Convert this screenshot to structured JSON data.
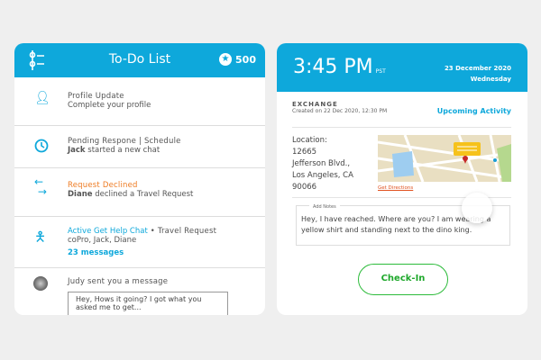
{
  "todo": {
    "title": "To-Do List",
    "points": "500",
    "items": [
      {
        "icon": "user-icon",
        "title": "Profile Update",
        "subtitle": "Complete your profile"
      },
      {
        "icon": "clock-icon",
        "title": "Pending Respone | Schedule",
        "subtitle_bold": "Jack",
        "subtitle": " started a new chat"
      },
      {
        "icon": "swap-arrows-icon",
        "title": "Request Declined",
        "subtitle_bold": "Diane",
        "subtitle": " declined a Travel Request"
      },
      {
        "icon": "help-person-icon",
        "title": "Active Get Help Chat",
        "title_extra": " • Travel Request",
        "subtitle": "coPro, Jack, Diane",
        "link": "23 messages"
      },
      {
        "icon": "avatar",
        "title": "Judy sent you a message",
        "message": "Hey, Hows it going? I got what you asked me to get..."
      }
    ]
  },
  "activity": {
    "time": "3:45 PM",
    "tz": "PST",
    "date": "23 December 2020",
    "weekday": "Wednesday",
    "type": "EXCHANGE",
    "created": "Created on 22 Dec 2020, 12:30 PM",
    "upcoming": "Upcoming Activity",
    "location_label": "Location:",
    "address": [
      "12665",
      "Jefferson Blvd.,",
      "Los Angeles, CA",
      "90066"
    ],
    "directions": "Get Directions",
    "notes_label": "Add Notes",
    "notes": "Hey, I have reached. Where are you? I am wearing a yellow shirt and standing next to the dino king.",
    "checkin": "Check-In"
  },
  "colors": {
    "brand": "#0ea8db",
    "declined": "#ee7b22",
    "checkin": "#2cbb3a",
    "directions": "#e0501e"
  }
}
